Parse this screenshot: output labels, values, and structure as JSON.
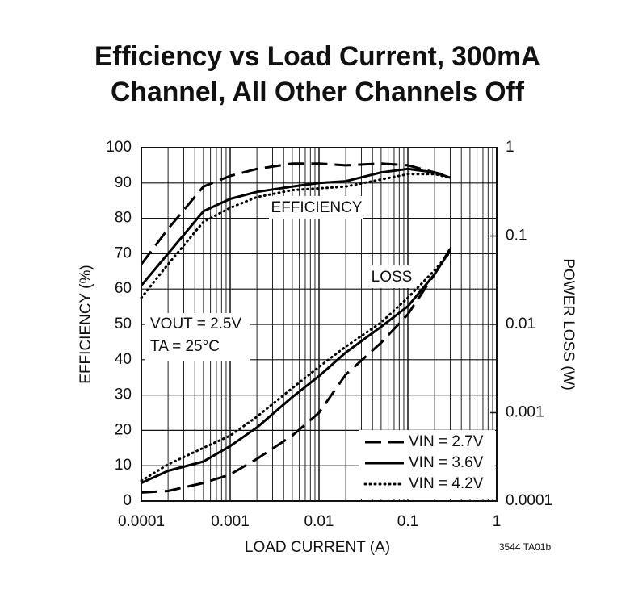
{
  "chart_data": {
    "type": "line",
    "title": [
      "Efficiency vs Load Current, 300mA",
      "Channel, All Other Channels Off"
    ],
    "xlabel": "LOAD CURRENT (A)",
    "ylabel": "EFFICIENCY (%)",
    "y2label": "POWER LOSS (W)",
    "annotations": [
      "EFFICIENCY",
      "LOSS",
      "VOUT = 2.5V",
      "TA = 25°C"
    ],
    "footnote": "3544 TA01b",
    "xscale": "log",
    "y2scale": "log",
    "grid": true,
    "xlim": [
      0.0001,
      1
    ],
    "xticks": [
      0.0001,
      0.001,
      0.01,
      0.1,
      1
    ],
    "ylim": [
      0,
      100
    ],
    "yticks": [
      0,
      10,
      20,
      30,
      40,
      50,
      60,
      70,
      80,
      90,
      100
    ],
    "y2lim": [
      0.0001,
      1
    ],
    "y2ticks": [
      0.0001,
      0.001,
      0.01,
      0.1,
      1
    ],
    "x": [
      0.0001,
      0.0002,
      0.0005,
      0.001,
      0.002,
      0.005,
      0.01,
      0.02,
      0.05,
      0.1,
      0.2,
      0.3
    ],
    "series": [
      {
        "name": "VIN = 2.7V",
        "color": "#000000",
        "dash": "dashed",
        "efficiency": [
          67,
          77,
          89,
          92,
          94,
          95.5,
          95.5,
          95,
          95.5,
          95,
          93,
          92
        ],
        "loss": [
          0.000125,
          0.00013,
          0.00016,
          0.0002,
          0.0003,
          0.00055,
          0.001,
          0.0027,
          0.0062,
          0.013,
          0.037,
          0.072
        ],
        "axis_loss": "y2"
      },
      {
        "name": "VIN = 3.6V",
        "color": "#000000",
        "dash": "solid",
        "efficiency": [
          61,
          70,
          82,
          85.5,
          87.5,
          89,
          90,
          90.5,
          93,
          94,
          93,
          91.5
        ],
        "loss": [
          0.00016,
          0.00022,
          0.00028,
          0.00042,
          0.00068,
          0.0015,
          0.0026,
          0.0048,
          0.0094,
          0.016,
          0.037,
          0.069
        ],
        "axis_loss": "y2"
      },
      {
        "name": "VIN = 4.2V",
        "color": "#000000",
        "dash": "dotted",
        "efficiency": [
          57.5,
          67,
          79,
          83,
          86,
          88,
          88.5,
          89,
          91,
          92.5,
          92.5,
          91.5
        ],
        "loss": [
          0.00017,
          0.00026,
          0.0004,
          0.00055,
          0.0009,
          0.0019,
          0.0033,
          0.0056,
          0.0105,
          0.02,
          0.041,
          0.066
        ],
        "axis_loss": "y2"
      }
    ]
  }
}
